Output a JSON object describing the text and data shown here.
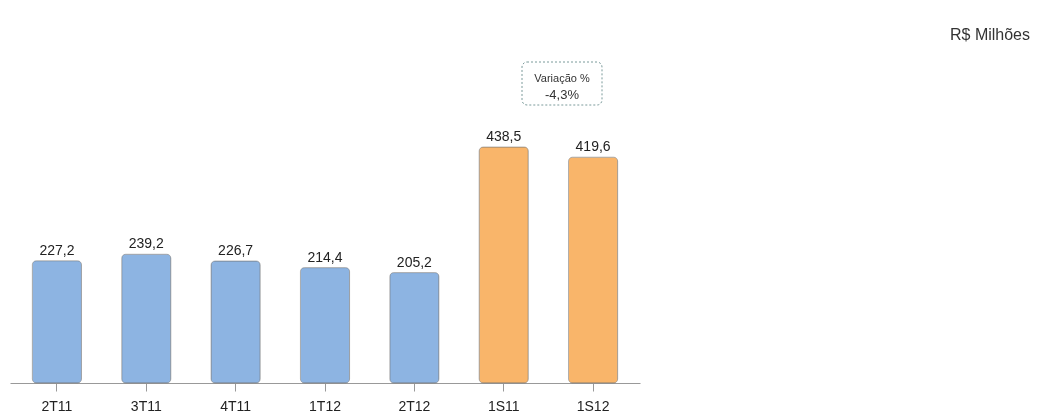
{
  "chart_data": {
    "type": "bar",
    "categories": [
      "2T11",
      "3T11",
      "4T11",
      "1T12",
      "2T12",
      "1S11",
      "1S12"
    ],
    "values": [
      227.2,
      239.2,
      226.7,
      214.4,
      205.2,
      438.5,
      419.6
    ],
    "colors": [
      "#8db4e2",
      "#8db4e2",
      "#8db4e2",
      "#8db4e2",
      "#8db4e2",
      "#f9b56a",
      "#f9b56a"
    ],
    "value_labels": [
      "227,2",
      "239,2",
      "226,7",
      "214,4",
      "205,2",
      "438,5",
      "419,6"
    ],
    "annotations": [
      "R$ Milhões",
      "Variação %",
      "-4,3%"
    ],
    "grid": false
  }
}
